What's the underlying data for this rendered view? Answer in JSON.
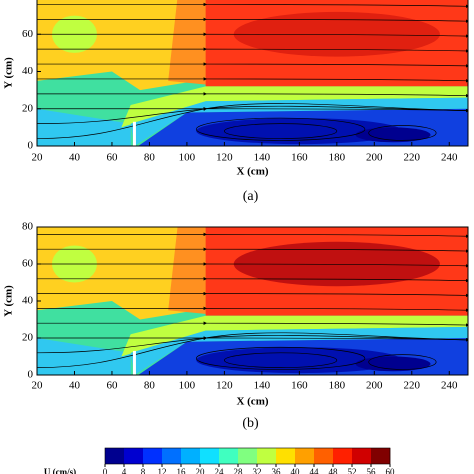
{
  "chart_data": [
    {
      "type": "contour",
      "panel_label": "(a)",
      "xlabel": "X (cm)",
      "ylabel": "Y (cm)",
      "xlim": [
        20,
        250
      ],
      "ylim": [
        0,
        80
      ],
      "xticks": [
        20,
        40,
        60,
        80,
        100,
        120,
        140,
        160,
        180,
        200,
        220,
        240
      ],
      "yticks": [
        0,
        20,
        40,
        60
      ]
    },
    {
      "type": "contour",
      "panel_label": "(b)",
      "xlabel": "X (cm)",
      "ylabel": "Y (cm)",
      "xlim": [
        20,
        250
      ],
      "ylim": [
        0,
        80
      ],
      "xticks": [
        20,
        40,
        60,
        80,
        100,
        120,
        140,
        160,
        180,
        200,
        220,
        240
      ],
      "yticks": [
        0,
        20,
        40,
        60,
        80
      ]
    }
  ],
  "colorbar": {
    "label": "U (cm/s)",
    "lim": [
      0,
      60
    ],
    "ticks": [
      0,
      4,
      8,
      12,
      16,
      20,
      24,
      28,
      32,
      36,
      40,
      44,
      48,
      52,
      56,
      60
    ],
    "colors": [
      "#00008f",
      "#0000d0",
      "#0030ff",
      "#0070ff",
      "#00b0ff",
      "#10e0ff",
      "#40ffc0",
      "#80ff80",
      "#c0ff40",
      "#ffe000",
      "#ffa000",
      "#ff6000",
      "#ff2000",
      "#d00000",
      "#800000"
    ]
  }
}
